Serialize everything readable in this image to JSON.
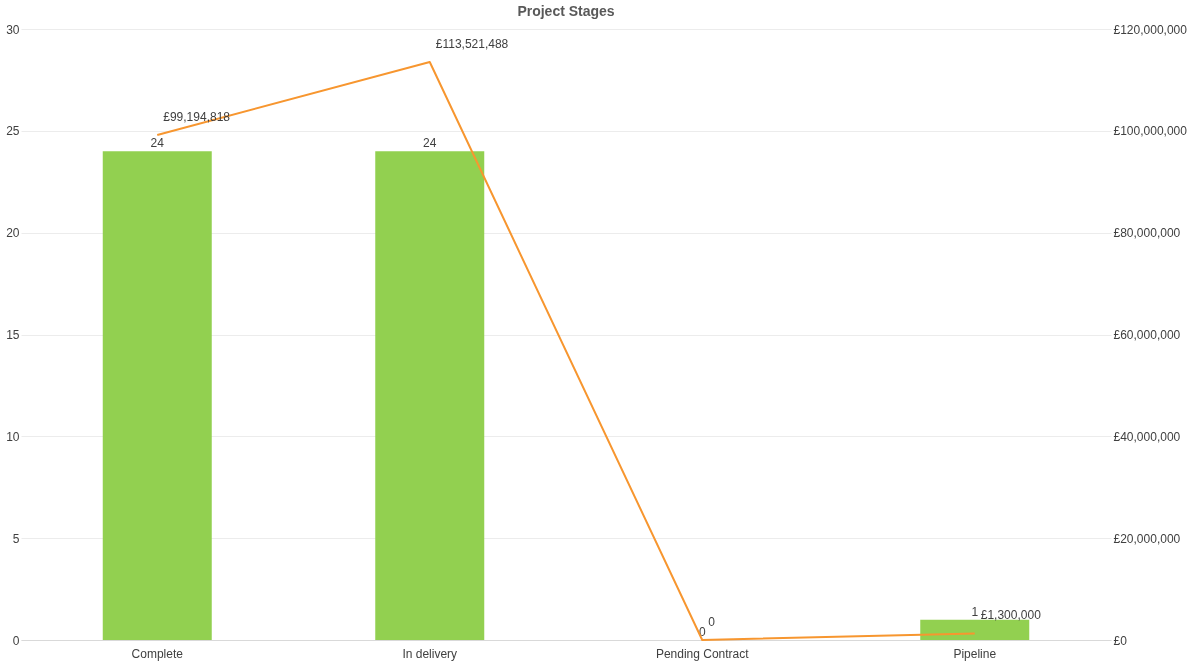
{
  "chart_data": {
    "type": "bar",
    "title": "Project Stages",
    "categories": [
      "Complete",
      "In delivery",
      "Pending Contract",
      "Pipeline"
    ],
    "series": [
      {
        "color": "#92d050",
        "values": [
          24,
          24,
          0,
          1
        ],
        "value_labels": [
          "24",
          "24",
          "0",
          "1"
        ]
      },
      {
        "type": "line",
        "axis": "y2",
        "color": "#f7962f",
        "values": [
          99194818,
          113521488,
          0,
          1300000
        ],
        "value_labels": [
          "£99,194,818",
          "£113,521,488",
          "0",
          "£1,300,000"
        ]
      }
    ],
    "ylim": [
      0,
      30
    ],
    "yticks": [
      0,
      5,
      10,
      15,
      20,
      25,
      30
    ],
    "y2lim": [
      0,
      120000000
    ],
    "y2ticks": [
      {
        "value": 0,
        "label": "£0"
      },
      {
        "value": 20000000,
        "label": "£20,000,000"
      },
      {
        "value": 40000000,
        "label": "£40,000,000"
      },
      {
        "value": 60000000,
        "label": "£60,000,000"
      },
      {
        "value": 80000000,
        "label": "£80,000,000"
      },
      {
        "value": 100000000,
        "label": "£100,000,000"
      },
      {
        "value": 120000000,
        "label": "£120,000,000"
      }
    ],
    "grid": "y"
  }
}
